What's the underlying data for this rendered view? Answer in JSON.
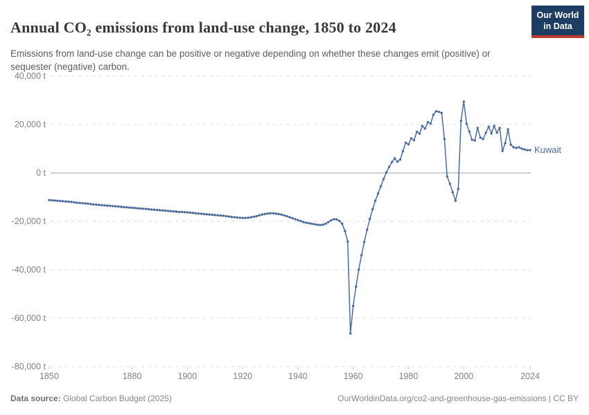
{
  "header": {
    "title": "Annual CO₂ emissions from land-use change, 1850 to 2024",
    "subtitle": "Emissions from land-use change can be positive or negative depending on whether these changes emit (positive) or sequester (negative) carbon.",
    "logo": {
      "line1": "Our World",
      "line2": "in Data",
      "bg_color": "#1d3d63",
      "bar_color": "#c0392b"
    }
  },
  "footer": {
    "source_label": "Data source:",
    "source_value": " Global Carbon Budget (2025)",
    "link": "OurWorldinData.org/co2-and-greenhouse-gas-emissions | CC BY"
  },
  "chart_data": {
    "type": "line",
    "title": "Annual CO₂ emissions from land-use change, 1850 to 2024",
    "unit": "t",
    "ylim": [
      -80000,
      40000
    ],
    "xlim": [
      1850,
      2024
    ],
    "grid": "dashed-horizontal",
    "grid_color": "#dcdcdc",
    "zero_line_color": "#a0a0a0",
    "tick_color": "#c2c2c2",
    "tick_label_color": "#818181",
    "legend_position": "end-of-line",
    "yticks": [
      {
        "value": 40000,
        "label": "40,000 t"
      },
      {
        "value": 20000,
        "label": "20,000 t"
      },
      {
        "value": 0,
        "label": "0 t"
      },
      {
        "value": -20000,
        "label": "-20,000 t"
      },
      {
        "value": -40000,
        "label": "-40,000 t"
      },
      {
        "value": -60000,
        "label": "-60,000 t"
      },
      {
        "value": -80000,
        "label": "-80,000 t"
      }
    ],
    "xticks": [
      {
        "value": 1850,
        "label": "1850"
      },
      {
        "value": 1880,
        "label": "1880"
      },
      {
        "value": 1900,
        "label": "1900"
      },
      {
        "value": 1920,
        "label": "1920"
      },
      {
        "value": 1940,
        "label": "1940"
      },
      {
        "value": 1960,
        "label": "1960"
      },
      {
        "value": 1980,
        "label": "1980"
      },
      {
        "value": 2000,
        "label": "2000"
      },
      {
        "value": 2024,
        "label": "2024"
      }
    ],
    "series": [
      {
        "name": "Kuwait",
        "color": "#4c6a9c",
        "start_year": 1850,
        "end_year": 2024,
        "values": [
          -11200,
          -11300,
          -11400,
          -11500,
          -11600,
          -11700,
          -11800,
          -11900,
          -12000,
          -12100,
          -12300,
          -12400,
          -12500,
          -12600,
          -12700,
          -12900,
          -13000,
          -13100,
          -13200,
          -13300,
          -13400,
          -13500,
          -13600,
          -13700,
          -13800,
          -13900,
          -14000,
          -14100,
          -14200,
          -14300,
          -14400,
          -14500,
          -14600,
          -14700,
          -14800,
          -14900,
          -15000,
          -15100,
          -15200,
          -15300,
          -15400,
          -15500,
          -15600,
          -15700,
          -15800,
          -15900,
          -16000,
          -16100,
          -16100,
          -16200,
          -16300,
          -16400,
          -16500,
          -16700,
          -16800,
          -16900,
          -17000,
          -17100,
          -17200,
          -17300,
          -17400,
          -17500,
          -17600,
          -17700,
          -17900,
          -18000,
          -18200,
          -18300,
          -18400,
          -18500,
          -18600,
          -18600,
          -18500,
          -18300,
          -18100,
          -17900,
          -17500,
          -17200,
          -17000,
          -16800,
          -16700,
          -16700,
          -16800,
          -17000,
          -17200,
          -17500,
          -17900,
          -18300,
          -18700,
          -19100,
          -19500,
          -19900,
          -20300,
          -20600,
          -20800,
          -21000,
          -21200,
          -21400,
          -21500,
          -21400,
          -21000,
          -20300,
          -19600,
          -19100,
          -19200,
          -19800,
          -21000,
          -24000,
          -28300,
          -66300,
          -55000,
          -47000,
          -40000,
          -34000,
          -28500,
          -23500,
          -19000,
          -15000,
          -11500,
          -8500,
          -5500,
          -2500,
          200,
          2500,
          4500,
          6000,
          4600,
          5500,
          9000,
          12500,
          11800,
          14300,
          13500,
          17000,
          16200,
          19400,
          18300,
          21000,
          20300,
          24000,
          25500,
          25200,
          24800,
          14000,
          -1500,
          -4500,
          -8000,
          -11500,
          -6600,
          21500,
          29500,
          20300,
          17100,
          13700,
          13400,
          18600,
          14600,
          14000,
          16600,
          19100,
          16300,
          19400,
          16600,
          18600,
          9100,
          12300,
          18000,
          11700,
          10600,
          10300,
          10600,
          10000,
          9700,
          9400,
          9400
        ]
      }
    ]
  }
}
